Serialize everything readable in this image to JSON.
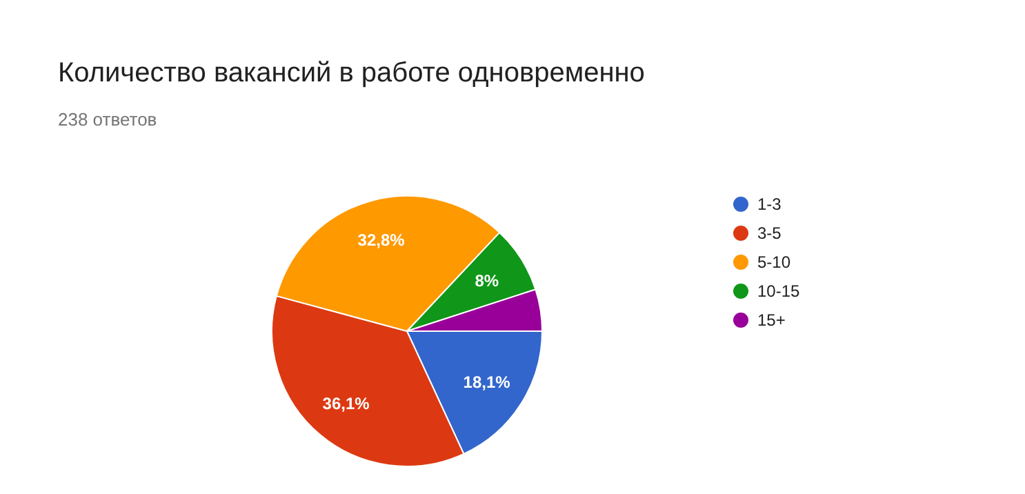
{
  "chart_data": {
    "type": "pie",
    "title": "Количество вакансий в работе одновременно",
    "subtitle": "238 ответов",
    "categories": [
      "1-3",
      "3-5",
      "5-10",
      "10-15",
      "15+"
    ],
    "values": [
      18.1,
      36.1,
      32.8,
      8,
      5
    ],
    "colors": [
      "#3366cc",
      "#dc3912",
      "#ff9900",
      "#109618",
      "#990099"
    ],
    "value_labels": [
      "18,1%",
      "36,1%",
      "32,8%",
      "8%",
      null
    ],
    "legend": "right"
  }
}
